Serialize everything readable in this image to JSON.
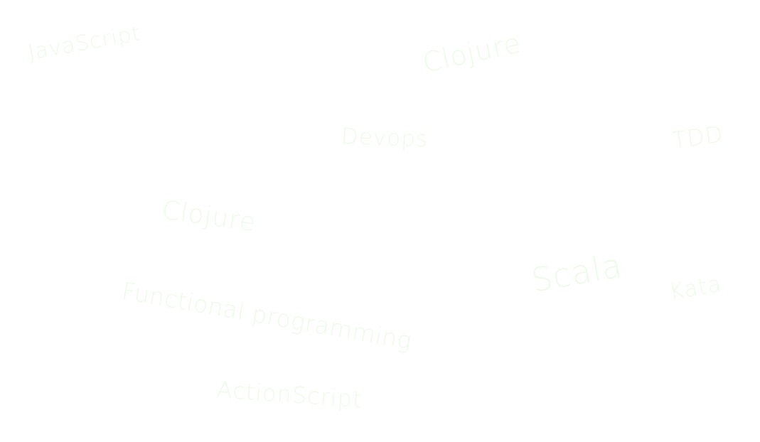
{
  "word_cloud": {
    "words": [
      {
        "text": "JavaScript"
      },
      {
        "text": "Clojure"
      },
      {
        "text": "Devops"
      },
      {
        "text": "TDD"
      },
      {
        "text": "Clojure"
      },
      {
        "text": "Scala"
      },
      {
        "text": "Kata"
      },
      {
        "text": "Functional programming"
      },
      {
        "text": "ActionScript"
      }
    ],
    "text_color": "#eefaea"
  }
}
